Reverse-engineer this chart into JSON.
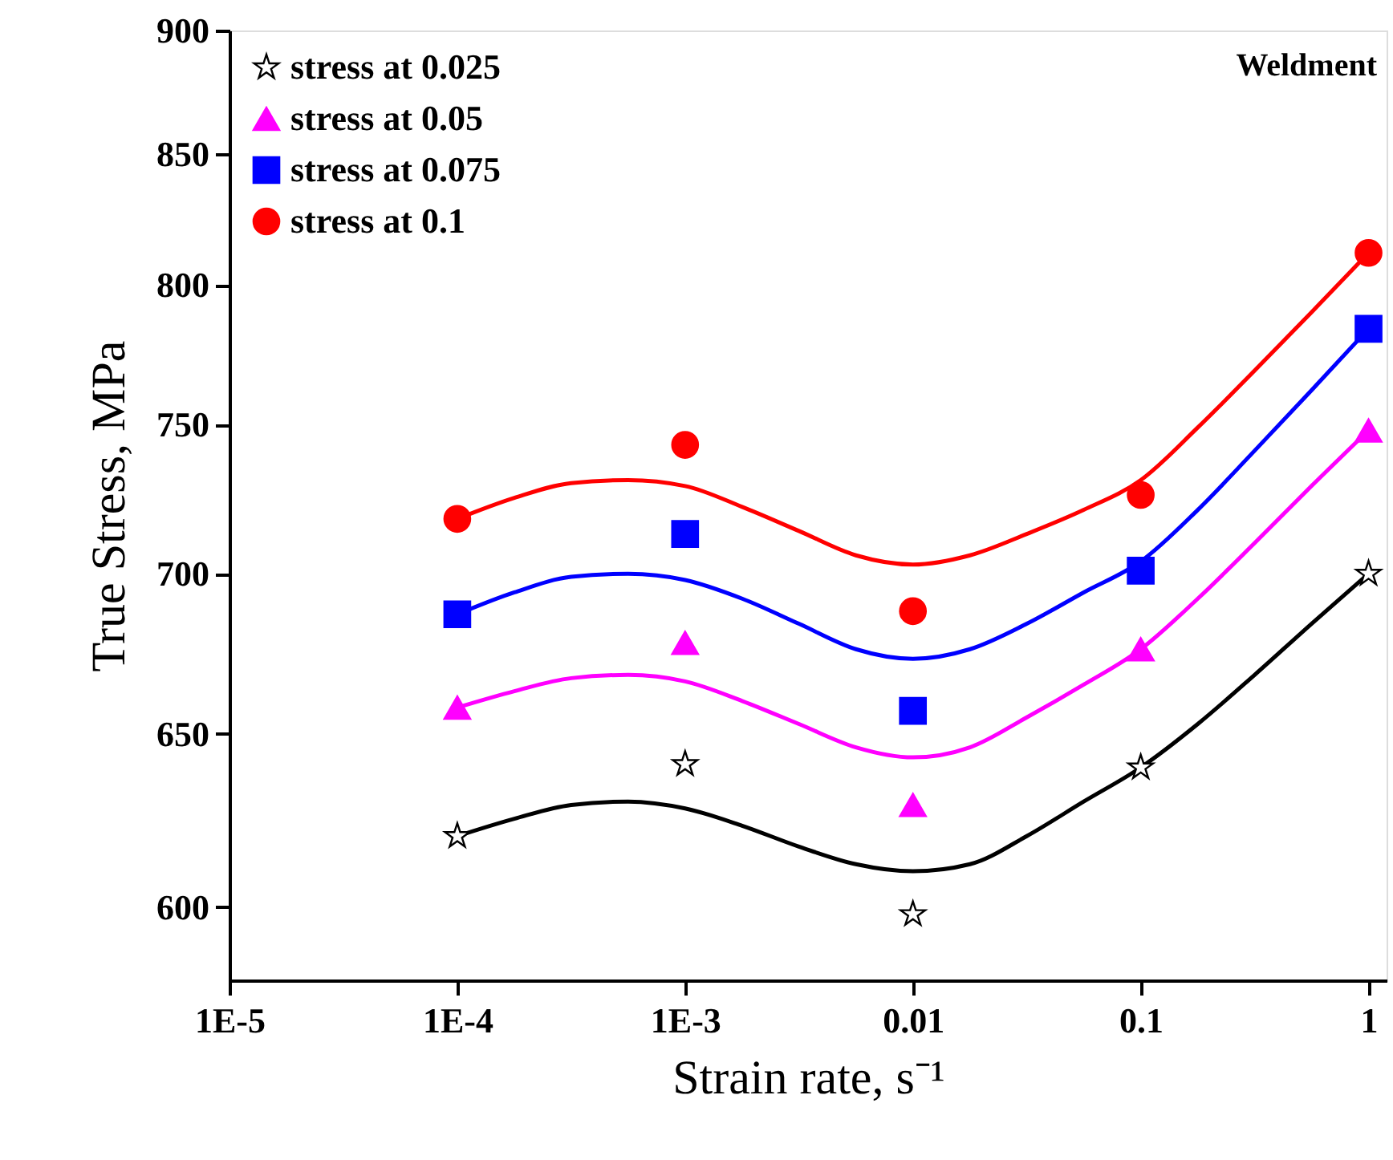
{
  "chart_data": {
    "type": "scatter",
    "xlabel": "Strain rate, s⁻¹",
    "ylabel": "True Stress, MPa",
    "annotations": [
      "Weldment"
    ],
    "log": "xy",
    "grid": false,
    "legend": "top left",
    "xlim": [
      1e-05,
      1.2
    ],
    "xticks": [
      {
        "value": 1e-05,
        "label": "1E-5"
      },
      {
        "value": 0.0001,
        "label": "1E-4"
      },
      {
        "value": 0.001,
        "label": "1E-3"
      },
      {
        "value": 0.01,
        "label": "0.01"
      },
      {
        "value": 0.1,
        "label": "0.1"
      },
      {
        "value": 1,
        "label": "1"
      }
    ],
    "ylim": [
      580,
      900
    ],
    "yticks": [
      600,
      650,
      700,
      750,
      800,
      850,
      900
    ],
    "series": [
      {
        "type": "scatter",
        "name": "stress at 0.025",
        "color": "#000000",
        "marker": "star",
        "x": [
          0.0001,
          0.001,
          0.01,
          0.1,
          1
        ],
        "values": [
          620,
          641,
          598,
          640,
          700
        ]
      },
      {
        "type": "scatter",
        "name": "stress at 0.05",
        "color": "#ff00ff",
        "marker": "triangle",
        "x": [
          0.0001,
          0.001,
          0.01,
          0.1,
          1
        ],
        "values": [
          658,
          678,
          629,
          676,
          748
        ]
      },
      {
        "type": "scatter",
        "name": "stress at 0.075",
        "color": "#0000ff",
        "marker": "square",
        "x": [
          0.0001,
          0.001,
          0.01,
          0.1,
          1
        ],
        "values": [
          687,
          713,
          657,
          701,
          784
        ]
      },
      {
        "type": "scatter",
        "name": "stress at 0.1",
        "color": "#ff0000",
        "marker": "circle",
        "x": [
          0.0001,
          0.001,
          0.01,
          0.1,
          1
        ],
        "values": [
          718,
          743,
          688,
          726,
          812
        ]
      },
      {
        "type": "line",
        "color": "#000000",
        "marker": "none",
        "x": [
          0.0001,
          0.000178,
          0.000316,
          0.000562,
          0.001,
          0.00178,
          0.00316,
          0.00562,
          0.01,
          0.0178,
          0.0316,
          0.0562,
          0.1,
          0.178,
          0.316,
          0.562,
          1
        ],
        "values": [
          620,
          625,
          629,
          630,
          628,
          623,
          617,
          612,
          610,
          612,
          620,
          630,
          640,
          653,
          668,
          684,
          700
        ]
      },
      {
        "type": "line",
        "color": "#ff00ff",
        "marker": "none",
        "x": [
          0.0001,
          0.000178,
          0.000316,
          0.000562,
          0.001,
          0.00178,
          0.00316,
          0.00562,
          0.01,
          0.0178,
          0.0316,
          0.0562,
          0.1,
          0.178,
          0.316,
          0.562,
          1
        ],
        "values": [
          658,
          663,
          667,
          668,
          666,
          660,
          653,
          646,
          643,
          646,
          655,
          665,
          676,
          692,
          710,
          729,
          748
        ]
      },
      {
        "type": "line",
        "color": "#0000ff",
        "marker": "none",
        "x": [
          0.0001,
          0.000178,
          0.000316,
          0.000562,
          0.001,
          0.00178,
          0.00316,
          0.00562,
          0.01,
          0.0178,
          0.0316,
          0.0562,
          0.1,
          0.178,
          0.316,
          0.562,
          1
        ],
        "values": [
          687,
          694,
          699,
          700,
          698,
          692,
          684,
          676,
          673,
          676,
          684,
          694,
          704,
          721,
          741,
          762,
          784
        ]
      },
      {
        "type": "line",
        "color": "#ff0000",
        "marker": "none",
        "x": [
          0.0001,
          0.000178,
          0.000316,
          0.000562,
          0.001,
          0.00178,
          0.00316,
          0.00562,
          0.01,
          0.0178,
          0.0316,
          0.0562,
          0.1,
          0.178,
          0.316,
          0.562,
          1
        ],
        "values": [
          718,
          725,
          730,
          731,
          729,
          722,
          714,
          706,
          703,
          706,
          713,
          721,
          731,
          749,
          769,
          790,
          812
        ]
      }
    ]
  }
}
